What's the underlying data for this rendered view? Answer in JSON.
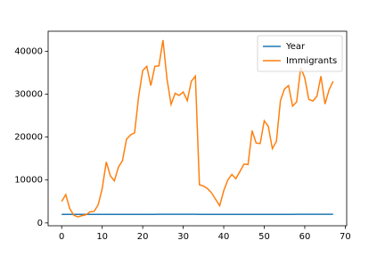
{
  "chart_data": {
    "type": "line",
    "x": [
      0,
      1,
      2,
      3,
      4,
      5,
      6,
      7,
      8,
      9,
      10,
      11,
      12,
      13,
      14,
      15,
      16,
      17,
      18,
      19,
      20,
      21,
      22,
      23,
      24,
      25,
      26,
      27,
      28,
      29,
      30,
      31,
      32,
      33,
      34,
      35,
      36,
      37,
      38,
      39,
      40,
      41,
      42,
      43,
      44,
      45,
      46,
      47,
      48,
      49,
      50,
      51,
      52,
      53,
      54,
      55,
      56,
      57,
      58,
      59,
      60,
      61,
      62,
      63,
      64,
      65,
      66,
      67
    ],
    "series": [
      {
        "name": "Year",
        "color": "#1f77b4",
        "values": [
          1980,
          1981,
          1982,
          1983,
          1984,
          1985,
          1986,
          1987,
          1988,
          1989,
          1990,
          1991,
          1992,
          1993,
          1994,
          1995,
          1996,
          1997,
          1998,
          1999,
          2000,
          2001,
          2002,
          2003,
          2004,
          2005,
          2006,
          2007,
          2008,
          2009,
          2010,
          2011,
          2012,
          2013,
          1980,
          1981,
          1982,
          1983,
          1984,
          1985,
          1986,
          1987,
          1988,
          1989,
          1990,
          1991,
          1992,
          1993,
          1994,
          1995,
          1996,
          1997,
          1998,
          1999,
          2000,
          2001,
          2002,
          2003,
          2004,
          2005,
          2006,
          2007,
          2008,
          2009,
          2010,
          2011,
          2012,
          2013
        ]
      },
      {
        "name": "Immigrants",
        "color": "#ff7f0e",
        "values": [
          5000,
          6600,
          3300,
          1800,
          1400,
          1700,
          1900,
          2600,
          2700,
          4200,
          8000,
          14200,
          11000,
          9800,
          13000,
          14500,
          19500,
          20500,
          21000,
          29500,
          35500,
          36500,
          32000,
          36500,
          36600,
          42600,
          33500,
          27600,
          30200,
          29700,
          30500,
          28500,
          33000,
          34200,
          8900,
          8600,
          8000,
          7000,
          5500,
          4000,
          7500,
          10000,
          11300,
          10300,
          12000,
          13700,
          13600,
          21500,
          18600,
          18500,
          23800,
          22500,
          17300,
          19000,
          28500,
          31200,
          32000,
          27200,
          28200,
          36200,
          33800,
          28800,
          28400,
          29500,
          34200,
          27700,
          31000,
          33000
        ]
      }
    ],
    "xlim": [
      -3.35,
      70.35
    ],
    "xticks": [
      0,
      10,
      20,
      30,
      40,
      50,
      60,
      70
    ],
    "ylim": [
      -660,
      44660
    ],
    "yticks": [
      0,
      10000,
      20000,
      30000,
      40000
    ],
    "grid": false,
    "legend": "upper right"
  }
}
